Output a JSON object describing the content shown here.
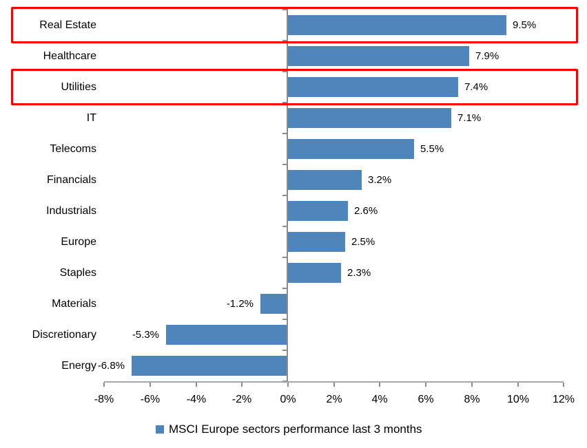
{
  "chart_data": {
    "type": "bar",
    "orientation": "horizontal",
    "title": "",
    "categories": [
      "Real Estate",
      "Healthcare",
      "Utilities",
      "IT",
      "Telecoms",
      "Financials",
      "Industrials",
      "Europe",
      "Staples",
      "Materials",
      "Discretionary",
      "Energy"
    ],
    "values": [
      9.5,
      7.9,
      7.4,
      7.1,
      5.5,
      3.2,
      2.6,
      2.5,
      2.3,
      -1.2,
      -5.3,
      -6.8
    ],
    "value_labels": [
      "9.5%",
      "7.9%",
      "7.4%",
      "7.1%",
      "5.5%",
      "3.2%",
      "2.6%",
      "2.5%",
      "2.3%",
      "-1.2%",
      "-5.3%",
      "-6.8%"
    ],
    "series_name": "MSCI Europe sectors performance last 3 months",
    "xlim": [
      -8,
      12
    ],
    "x_ticks": [
      {
        "value": -8,
        "label": "-8%"
      },
      {
        "value": -6,
        "label": "-6%"
      },
      {
        "value": -4,
        "label": "-4%"
      },
      {
        "value": -2,
        "label": "-2%"
      },
      {
        "value": 0,
        "label": "0%"
      },
      {
        "value": 2,
        "label": "2%"
      },
      {
        "value": 4,
        "label": "4%"
      },
      {
        "value": 6,
        "label": "6%"
      },
      {
        "value": 8,
        "label": "8%"
      },
      {
        "value": 10,
        "label": "10%"
      },
      {
        "value": 12,
        "label": "12%"
      }
    ],
    "grid": false,
    "legend_position": "bottom",
    "bar_color": "#4e86bc",
    "axis_color": "#8c8c8c",
    "highlight_color": "#ff0000",
    "highlighted_categories": [
      "Real Estate",
      "Utilities"
    ]
  },
  "legend": {
    "marker_icon": "legend-square-marker",
    "marker_color": "#4e86bc",
    "label": "MSCI Europe sectors performance last 3 months"
  }
}
